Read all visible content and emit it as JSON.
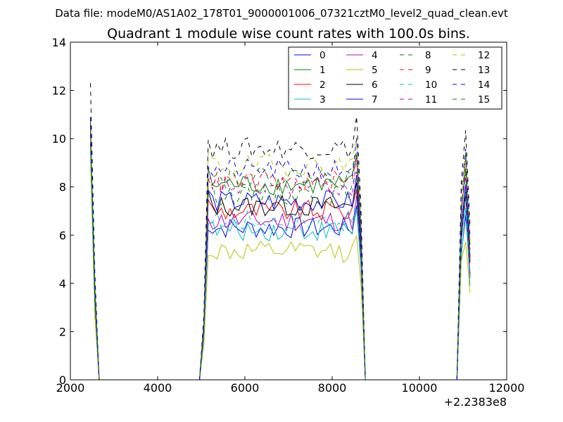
{
  "chart_data": {
    "type": "line",
    "suptitle": "Data file: modeM0/AS1A02_178T01_9000001006_07321cztM0_level2_quad_clean.evt",
    "title": "Quadrant 1 module wise count rates with 100.0s bins.",
    "xlabel": "",
    "ylabel": "",
    "x_offset_label": "+2.2383e8",
    "xlim": [
      2000,
      12000
    ],
    "ylim": [
      0,
      14
    ],
    "x_ticks": [
      2000,
      4000,
      6000,
      8000,
      10000,
      12000
    ],
    "y_ticks": [
      0,
      2,
      4,
      6,
      8,
      10,
      12,
      14
    ],
    "x_tick_labels": [
      "2000",
      "4000",
      "6000",
      "8000",
      "10000",
      "12000"
    ],
    "y_tick_labels": [
      "0",
      "2",
      "4",
      "6",
      "8",
      "10",
      "12",
      "14"
    ],
    "grid": false,
    "legend_position": "top-right",
    "legend_columns": 4,
    "segments": [
      {
        "x_start": 2460,
        "x_end": 2660
      },
      {
        "x_start": 4960,
        "x_end": 8760
      },
      {
        "x_start": 10860,
        "x_end": 11160
      }
    ],
    "series": [
      {
        "name": "0",
        "color": "#0000ff",
        "style": "solid",
        "level": 6.3,
        "first": 10.8
      },
      {
        "name": "1",
        "color": "#008000",
        "style": "solid",
        "level": 8.1,
        "first": 10.5
      },
      {
        "name": "2",
        "color": "#ff0000",
        "style": "solid",
        "level": 7.0,
        "first": 10.2
      },
      {
        "name": "3",
        "color": "#00bfbf",
        "style": "solid",
        "level": 6.2,
        "first": 9.6
      },
      {
        "name": "4",
        "color": "#bf00bf",
        "style": "solid",
        "level": 6.6,
        "first": 9.8
      },
      {
        "name": "5",
        "color": "#bfbf00",
        "style": "solid",
        "level": 5.3,
        "first": 9.2
      },
      {
        "name": "6",
        "color": "#000000",
        "style": "solid",
        "level": 7.2,
        "first": 10.0
      },
      {
        "name": "7",
        "color": "#0000ff",
        "style": "solid",
        "level": 7.4,
        "first": 10.3
      },
      {
        "name": "8",
        "color": "#008000",
        "style": "dashed",
        "level": 7.7,
        "first": 10.1
      },
      {
        "name": "9",
        "color": "#ff0000",
        "style": "dashed",
        "level": 8.2,
        "first": 10.6
      },
      {
        "name": "10",
        "color": "#00bfbf",
        "style": "dashed",
        "level": 6.6,
        "first": 9.5
      },
      {
        "name": "11",
        "color": "#bf00bf",
        "style": "dashed",
        "level": 8.0,
        "first": 10.4
      },
      {
        "name": "12",
        "color": "#bfbf00",
        "style": "dashed",
        "level": 8.9,
        "first": 10.0
      },
      {
        "name": "13",
        "color": "#000000",
        "style": "dashed",
        "level": 9.6,
        "first": 12.3
      },
      {
        "name": "14",
        "color": "#0000ff",
        "style": "dashed",
        "level": 8.7,
        "first": 10.9
      },
      {
        "name": "15",
        "color": "#008000",
        "style": "dashed",
        "level": 8.4,
        "first": 10.7
      }
    ]
  }
}
